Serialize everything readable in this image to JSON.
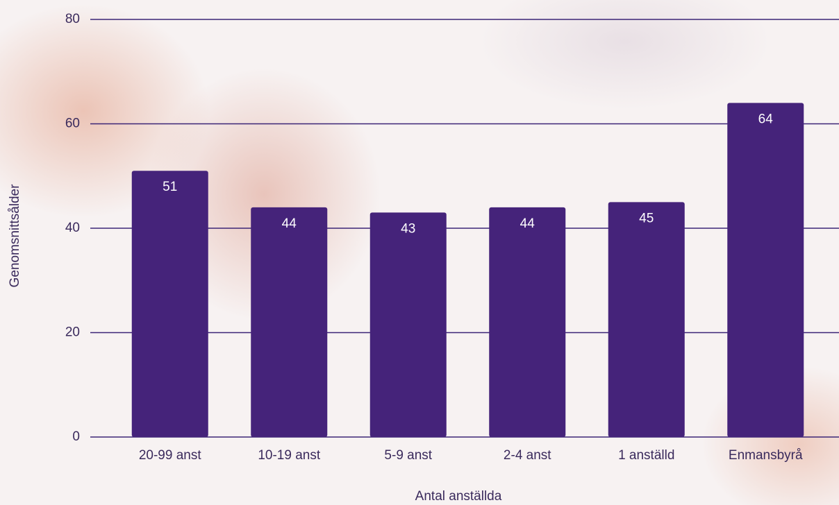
{
  "chart_data": {
    "type": "bar",
    "x_label": "Antal anställda",
    "y_label": "Genomsnittsålder",
    "categories": [
      "20-99 anst",
      "10-19 anst",
      "5-9 anst",
      "2-4 anst",
      "1 anställd",
      "Enmansbyrå"
    ],
    "values": [
      51,
      44,
      43,
      44,
      45,
      64
    ],
    "color": "#45237a",
    "ylim": [
      0,
      80
    ],
    "yticks": [
      0,
      20,
      40,
      60,
      80
    ],
    "grid": true
  }
}
